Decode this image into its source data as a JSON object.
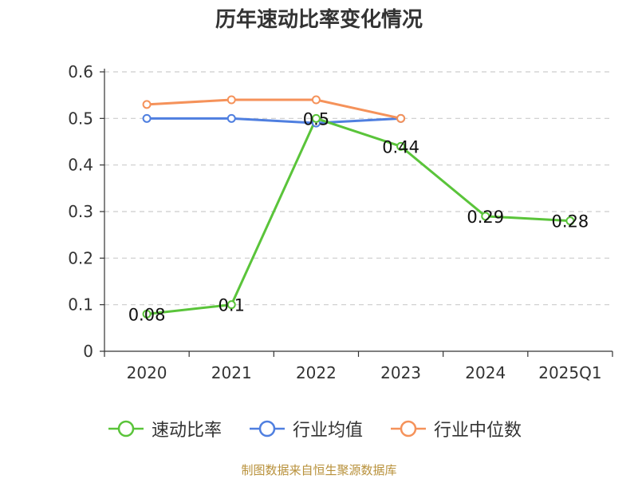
{
  "chart_data": {
    "type": "line",
    "title": "历年速动比率变化情况",
    "categories": [
      "2020",
      "2021",
      "2022",
      "2023",
      "2024",
      "2025Q1"
    ],
    "ylim": [
      0,
      0.6
    ],
    "yticks": [
      "0",
      "0.1",
      "0.2",
      "0.3",
      "0.4",
      "0.5",
      "0.6"
    ],
    "grid": true,
    "legend_position": "bottom",
    "series": [
      {
        "name": "速动比率",
        "color": "#5ac43a",
        "values": [
          0.08,
          0.1,
          0.5,
          0.44,
          0.29,
          0.28
        ],
        "labels": [
          "0.08",
          "0.1",
          "0.5",
          "0.44",
          "0.29",
          "0.28"
        ]
      },
      {
        "name": "行业均值",
        "color": "#4f7fe0",
        "values": [
          0.5,
          0.5,
          0.49,
          0.5,
          null,
          null
        ]
      },
      {
        "name": "行业中位数",
        "color": "#f5925a",
        "values": [
          0.53,
          0.54,
          0.54,
          0.5,
          null,
          null
        ]
      }
    ]
  },
  "footer": {
    "source": "制图数据来自恒生聚源数据库"
  }
}
